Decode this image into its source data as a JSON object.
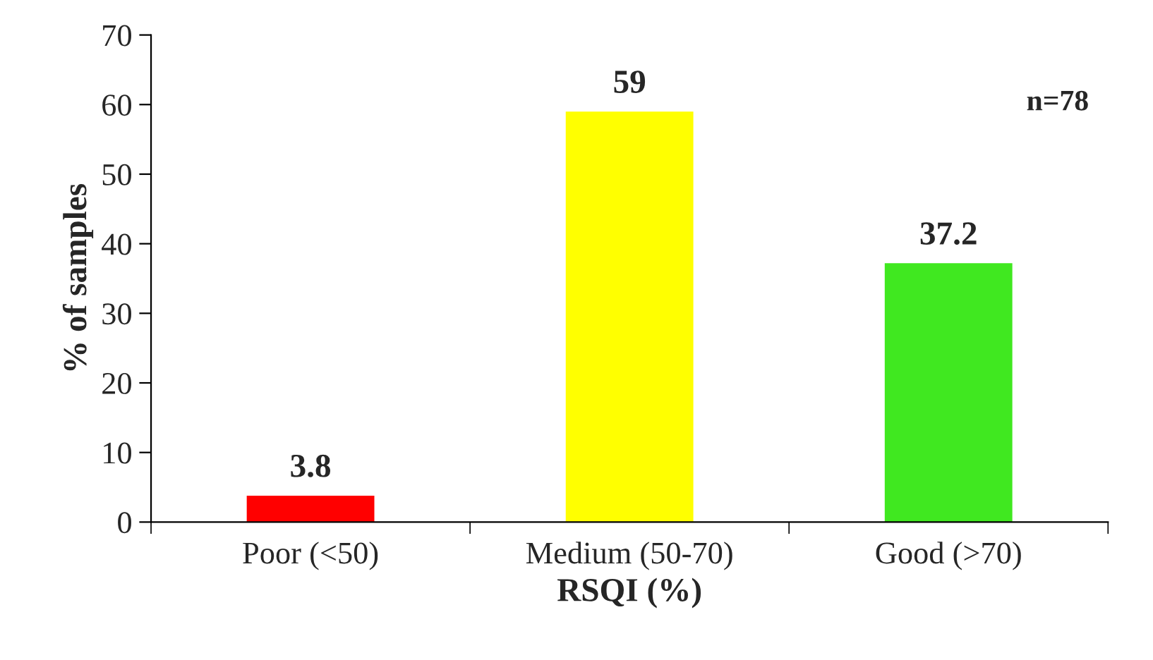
{
  "chart_data": {
    "type": "bar",
    "xlabel": "RSQI (%)",
    "ylabel": "% of samples",
    "categories": [
      "Poor (<50)",
      "Medium (50-70)",
      "Good (>70)"
    ],
    "values": [
      3.8,
      59,
      37.2
    ],
    "colors": [
      "#ff0000",
      "#ffff00",
      "#40e820"
    ],
    "ylim": [
      0,
      70
    ],
    "yticks": [
      0,
      10,
      20,
      30,
      40,
      50,
      60,
      70
    ],
    "data_labels": true,
    "grid": false,
    "legend": false,
    "annotations": [
      "n=78"
    ]
  }
}
